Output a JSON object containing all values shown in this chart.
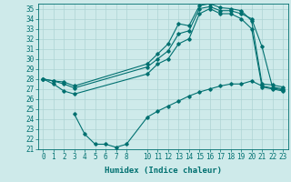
{
  "title": "",
  "xlabel": "Humidex (Indice chaleur)",
  "bg_color": "#ceeaea",
  "line_color": "#007070",
  "grid_color": "#aed4d4",
  "xlim": [
    -0.5,
    23.5
  ],
  "ylim": [
    21,
    35.5
  ],
  "yticks": [
    21,
    22,
    23,
    24,
    25,
    26,
    27,
    28,
    29,
    30,
    31,
    32,
    33,
    34,
    35
  ],
  "xticks": [
    0,
    1,
    2,
    3,
    4,
    5,
    6,
    7,
    8,
    10,
    11,
    12,
    13,
    14,
    15,
    16,
    17,
    18,
    19,
    20,
    21,
    22,
    23
  ],
  "line1_x": [
    0,
    1,
    2,
    3,
    10,
    11,
    12,
    13,
    14,
    15,
    16,
    17,
    18,
    19,
    20,
    21,
    22,
    23
  ],
  "line1_y": [
    28,
    27.8,
    27.7,
    27.3,
    29.5,
    30.5,
    31.5,
    33.5,
    33.3,
    35.3,
    35.5,
    35.1,
    35.0,
    34.8,
    33.8,
    27.5,
    27.4,
    27.2
  ],
  "line2_x": [
    0,
    1,
    2,
    3,
    10,
    11,
    12,
    13,
    14,
    15,
    16,
    17,
    18,
    19,
    20,
    21,
    22,
    23
  ],
  "line2_y": [
    28,
    27.8,
    27.5,
    27.1,
    29.2,
    30.0,
    30.8,
    32.5,
    32.8,
    35.0,
    35.2,
    34.8,
    34.8,
    34.5,
    34.0,
    31.2,
    27.2,
    27.0
  ],
  "line3_x": [
    0,
    1,
    2,
    3,
    10,
    11,
    12,
    13,
    14,
    15,
    16,
    17,
    18,
    19,
    20,
    21,
    22,
    23
  ],
  "line3_y": [
    28,
    27.5,
    26.8,
    26.5,
    28.5,
    29.5,
    30.0,
    31.5,
    32.0,
    34.5,
    35.0,
    34.5,
    34.5,
    34.0,
    33.0,
    27.2,
    27.0,
    26.8
  ],
  "line4_x": [
    3,
    4,
    5,
    6,
    7,
    8,
    10,
    11,
    12,
    13,
    14,
    15,
    16,
    17,
    18,
    19,
    20,
    21,
    22,
    23
  ],
  "line4_y": [
    24.5,
    22.5,
    21.5,
    21.5,
    21.2,
    21.5,
    24.2,
    24.8,
    25.3,
    25.8,
    26.3,
    26.7,
    27.0,
    27.3,
    27.5,
    27.5,
    27.8,
    27.3,
    27.1,
    26.9
  ],
  "marker": "D",
  "markersize": 1.8,
  "linewidth": 0.8,
  "fontsize_tick": 5.5,
  "fontsize_xlabel": 6.5
}
